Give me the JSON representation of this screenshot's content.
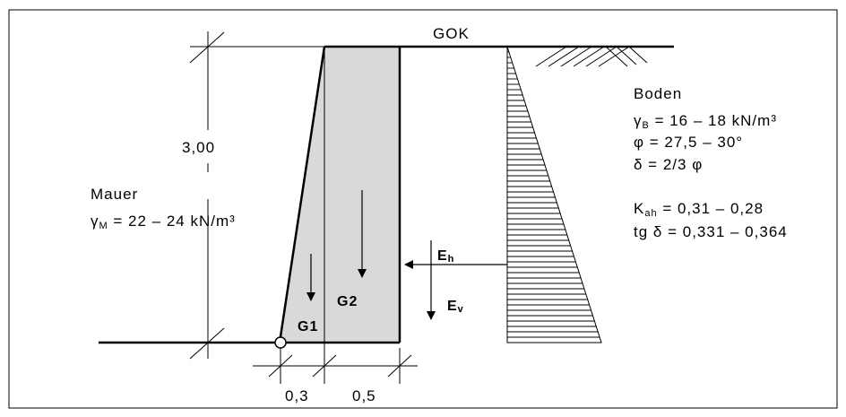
{
  "gok_label": "GOK",
  "height_dim": "3,00",
  "base_dims": [
    "0,3",
    "0,5"
  ],
  "mauer": {
    "title": "Mauer",
    "gamma_sym": "γ",
    "gamma_sub": "M",
    "gamma_val": " = 22 – 24 kN/m³"
  },
  "boden": {
    "title": "Boden",
    "gamma_sym": "γ",
    "gamma_sub": "B",
    "gamma_val": " = 16 – 18 kN/m³",
    "phi": "φ = 27,5 – 30°",
    "delta": "δ = 2/3 φ",
    "kah_sym": "K",
    "kah_sub": "ah",
    "kah_val": " = 0,31 – 0,28",
    "tg": "tg δ = 0,331 – 0,364"
  },
  "forces": {
    "g1": "G1",
    "g2": "G2",
    "eh_sym": "E",
    "eh_sub": "h",
    "ev_sym": "E",
    "ev_sub": "v"
  }
}
